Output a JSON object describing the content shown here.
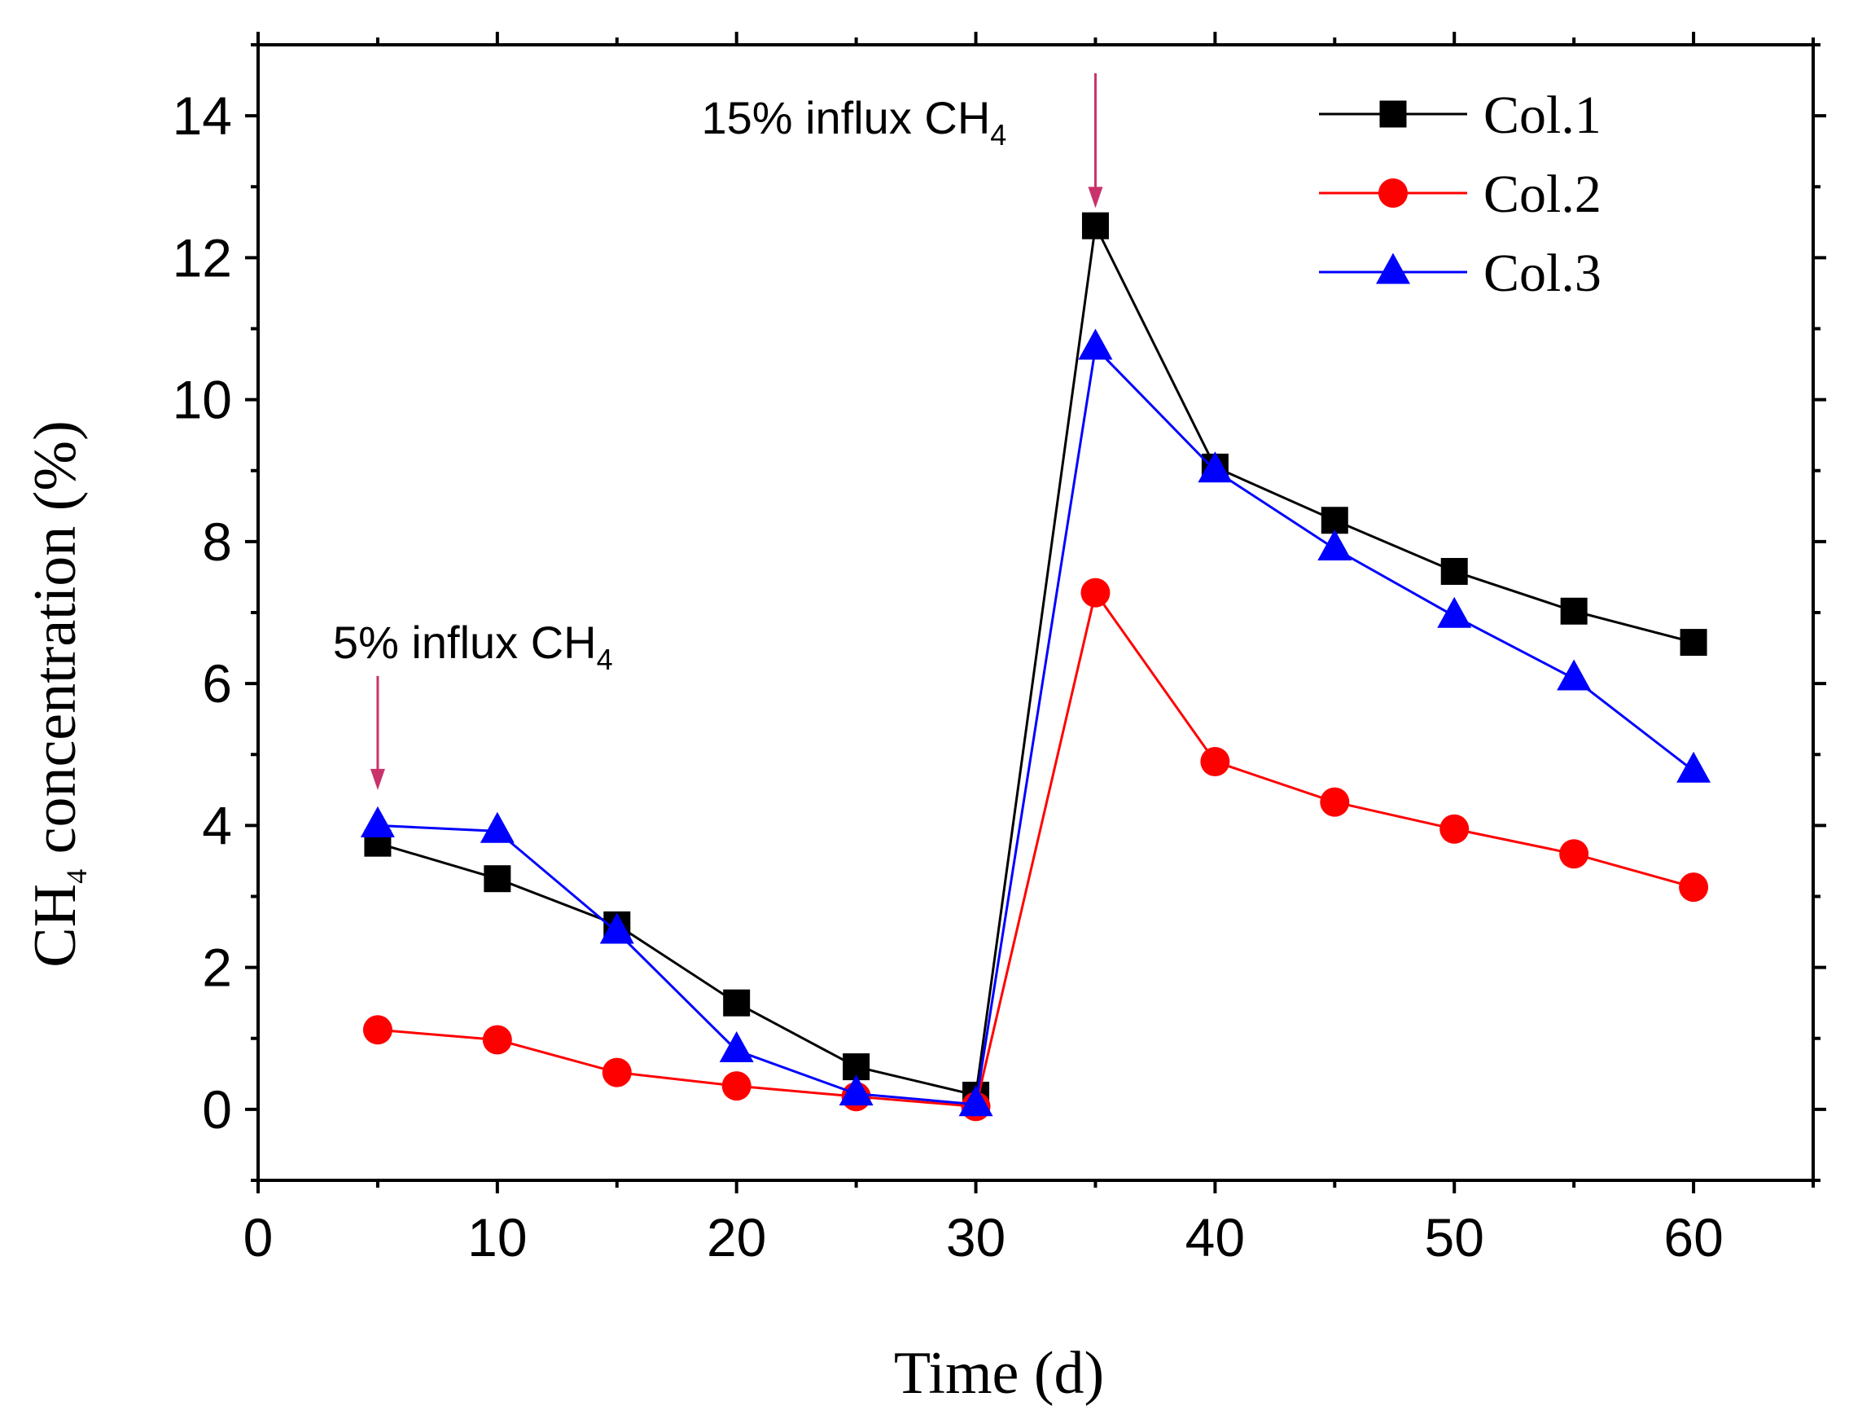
{
  "chart_data": {
    "type": "line",
    "x": [
      5,
      10,
      15,
      20,
      25,
      30,
      35,
      40,
      45,
      50,
      55,
      60
    ],
    "series": [
      {
        "name": "Col.1",
        "color": "#000000",
        "marker": "square",
        "values": [
          3.75,
          3.25,
          2.6,
          1.5,
          0.6,
          0.2,
          12.45,
          9.05,
          8.3,
          7.58,
          7.02,
          6.58
        ]
      },
      {
        "name": "Col.2",
        "color": "#ff0000",
        "marker": "circle",
        "values": [
          1.12,
          0.98,
          0.52,
          0.33,
          0.18,
          0.04,
          7.28,
          4.9,
          4.33,
          3.95,
          3.6,
          3.13
        ]
      },
      {
        "name": "Col.3",
        "color": "#0000ff",
        "marker": "triangle",
        "values": [
          4.0,
          3.92,
          2.5,
          0.83,
          0.22,
          0.07,
          10.73,
          9.0,
          7.9,
          6.95,
          6.07,
          4.77
        ]
      }
    ],
    "xlabel": "Time (d)",
    "ylabel_main": "CH",
    "ylabel_sub": "4",
    "ylabel_rest": " concentration (%)",
    "xlim": [
      0,
      65
    ],
    "ylim": [
      -1,
      15
    ],
    "xticks": [
      0,
      10,
      20,
      30,
      40,
      50,
      60
    ],
    "yticks": [
      0,
      2,
      4,
      6,
      8,
      10,
      12,
      14
    ],
    "legend_position": "top-right",
    "annotations": [
      {
        "text": "5% influx CH",
        "sub": "4",
        "x": 5,
        "y_tip": 4.5,
        "arrow_color": "#c8336b"
      },
      {
        "text": "15% influx CH",
        "sub": "4",
        "x": 35,
        "y_tip": 12.7,
        "arrow_color": "#c8336b"
      }
    ]
  }
}
